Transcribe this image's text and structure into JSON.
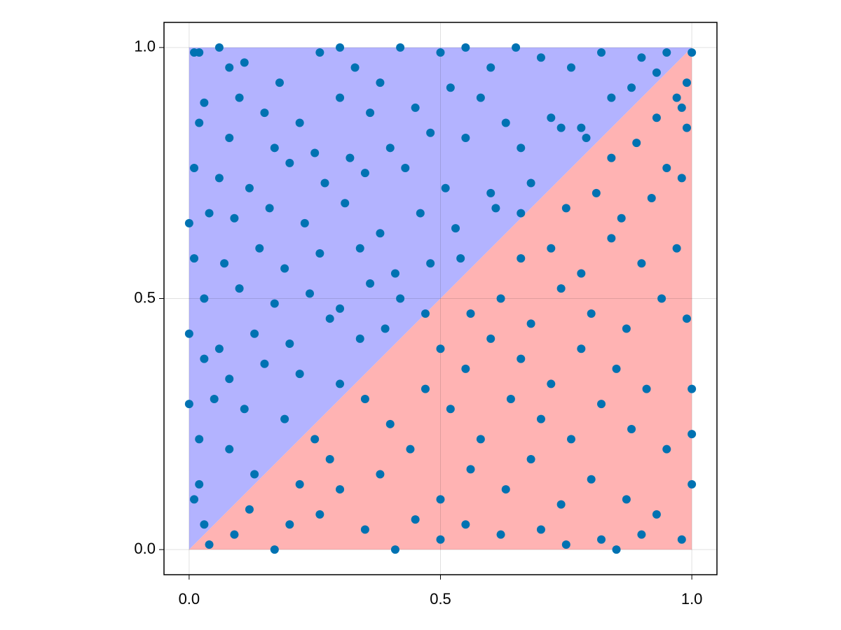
{
  "chart_data": {
    "type": "scatter",
    "xlim": [
      -0.05,
      1.05
    ],
    "ylim": [
      -0.05,
      1.05
    ],
    "xticks": [
      {
        "value": 0,
        "label": "0.0"
      },
      {
        "value": 0.5,
        "label": "0.5"
      },
      {
        "value": 1,
        "label": "1.0"
      }
    ],
    "yticks": [
      {
        "value": 0,
        "label": "0.0"
      },
      {
        "value": 0.5,
        "label": "0.5"
      },
      {
        "value": 1,
        "label": "1.0"
      }
    ],
    "grid": true,
    "fills": [
      {
        "color": "#b3b3ff",
        "x": [
          0,
          1
        ],
        "lower": [
          0,
          1
        ],
        "upper": [
          1,
          1
        ]
      },
      {
        "color": "#ffb3b3",
        "x": [
          0,
          1
        ],
        "lower": [
          0,
          0
        ],
        "upper": [
          0,
          1
        ]
      }
    ],
    "series": [
      {
        "color": "#0072b2",
        "x": [
          0.06,
          0.01,
          0.02,
          0.08,
          0.11,
          0.18,
          0.3,
          0.26,
          0.33,
          0.38,
          0.42,
          0.5,
          0.55,
          0.6,
          0.65,
          0.7,
          0.76,
          0.82,
          0.9,
          0.95,
          1.0,
          0.93,
          0.99,
          0.97,
          0.88,
          0.03,
          0.1,
          0.15,
          0.22,
          0.3,
          0.36,
          0.45,
          0.52,
          0.58,
          0.63,
          0.72,
          0.78,
          0.84,
          0.98,
          0.02,
          0.08,
          0.17,
          0.25,
          0.32,
          0.4,
          0.48,
          0.55,
          0.66,
          0.74,
          0.79,
          0.01,
          0.06,
          0.12,
          0.2,
          0.27,
          0.35,
          0.43,
          0.51,
          0.6,
          0.68,
          0.0,
          0.04,
          0.09,
          0.16,
          0.23,
          0.31,
          0.38,
          0.46,
          0.53,
          0.61,
          0.66,
          0.01,
          0.07,
          0.14,
          0.19,
          0.26,
          0.34,
          0.41,
          0.48,
          0.54,
          0.03,
          0.1,
          0.17,
          0.24,
          0.3,
          0.36,
          0.42,
          0.47,
          0.0,
          0.06,
          0.13,
          0.2,
          0.28,
          0.34,
          0.39,
          0.03,
          0.08,
          0.15,
          0.22,
          0.3,
          0.0,
          0.05,
          0.11,
          0.19,
          0.25,
          0.02,
          0.08,
          0.13,
          0.01,
          0.03,
          0.02,
          0.04,
          0.09,
          0.17,
          0.2,
          0.12,
          0.26,
          0.3,
          0.35,
          0.41,
          0.45,
          0.5,
          0.55,
          0.62,
          0.7,
          0.75,
          0.82,
          0.85,
          0.9,
          0.98,
          0.22,
          0.28,
          0.38,
          0.44,
          0.5,
          0.56,
          0.63,
          0.68,
          0.74,
          0.8,
          0.87,
          0.93,
          1.0,
          0.35,
          0.4,
          0.47,
          0.52,
          0.58,
          0.64,
          0.7,
          0.76,
          0.82,
          0.88,
          0.95,
          1.0,
          0.5,
          0.55,
          0.6,
          0.66,
          0.72,
          0.78,
          0.85,
          0.91,
          1.0,
          0.56,
          0.62,
          0.68,
          0.74,
          0.8,
          0.87,
          0.94,
          0.99,
          0.66,
          0.72,
          0.78,
          0.84,
          0.9,
          0.97,
          0.75,
          0.81,
          0.86,
          0.92,
          0.98,
          0.84,
          0.89,
          0.95,
          0.99,
          0.93
        ],
        "values": [
          1.0,
          0.99,
          0.99,
          0.96,
          0.97,
          0.93,
          1.0,
          0.99,
          0.96,
          0.93,
          1.0,
          0.99,
          1.0,
          0.96,
          1.0,
          0.98,
          0.96,
          0.99,
          0.98,
          0.99,
          0.99,
          0.95,
          0.93,
          0.9,
          0.92,
          0.89,
          0.9,
          0.87,
          0.85,
          0.9,
          0.87,
          0.88,
          0.92,
          0.9,
          0.85,
          0.86,
          0.84,
          0.9,
          0.88,
          0.85,
          0.82,
          0.8,
          0.79,
          0.78,
          0.8,
          0.83,
          0.82,
          0.8,
          0.84,
          0.82,
          0.76,
          0.74,
          0.72,
          0.77,
          0.73,
          0.75,
          0.76,
          0.72,
          0.71,
          0.73,
          0.65,
          0.67,
          0.66,
          0.68,
          0.65,
          0.69,
          0.63,
          0.67,
          0.64,
          0.68,
          0.67,
          0.58,
          0.57,
          0.6,
          0.56,
          0.59,
          0.6,
          0.55,
          0.57,
          0.58,
          0.5,
          0.52,
          0.49,
          0.51,
          0.48,
          0.53,
          0.5,
          0.47,
          0.43,
          0.4,
          0.43,
          0.41,
          0.46,
          0.42,
          0.44,
          0.38,
          0.34,
          0.37,
          0.35,
          0.33,
          0.29,
          0.3,
          0.28,
          0.26,
          0.22,
          0.22,
          0.2,
          0.15,
          0.1,
          0.05,
          0.13,
          0.01,
          0.03,
          0.0,
          0.05,
          0.08,
          0.07,
          0.12,
          0.04,
          0.0,
          0.06,
          0.02,
          0.05,
          0.03,
          0.04,
          0.01,
          0.02,
          0.0,
          0.03,
          0.02,
          0.13,
          0.18,
          0.15,
          0.2,
          0.1,
          0.16,
          0.12,
          0.18,
          0.09,
          0.14,
          0.1,
          0.07,
          0.13,
          0.3,
          0.25,
          0.32,
          0.28,
          0.22,
          0.3,
          0.26,
          0.22,
          0.29,
          0.24,
          0.2,
          0.23,
          0.4,
          0.36,
          0.42,
          0.38,
          0.33,
          0.4,
          0.36,
          0.32,
          0.32,
          0.47,
          0.5,
          0.45,
          0.52,
          0.47,
          0.44,
          0.5,
          0.46,
          0.58,
          0.6,
          0.55,
          0.62,
          0.57,
          0.6,
          0.68,
          0.71,
          0.66,
          0.7,
          0.74,
          0.78,
          0.81,
          0.76,
          0.84,
          0.86
        ]
      }
    ]
  }
}
